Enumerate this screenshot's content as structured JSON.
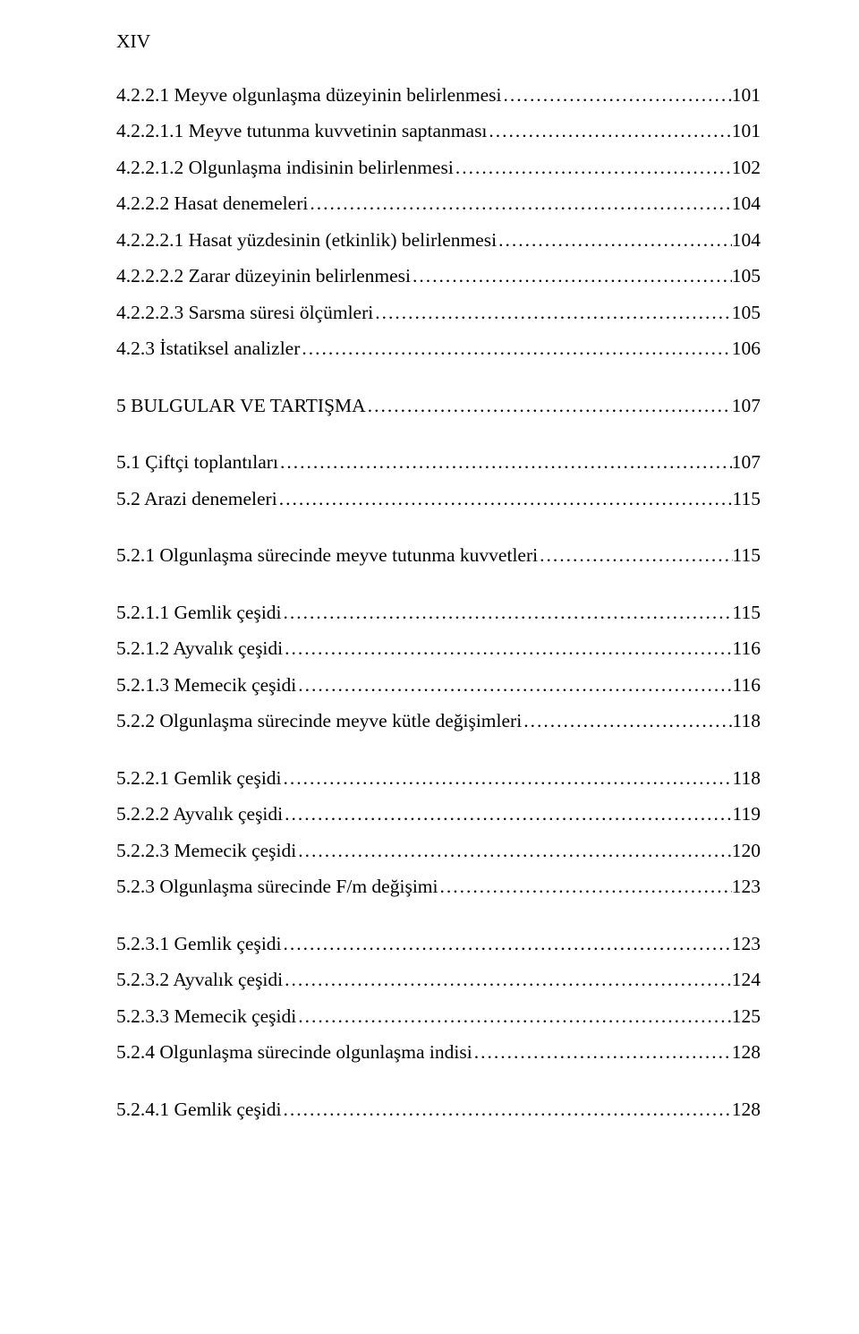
{
  "page_number": "XIV",
  "font": {
    "family": "Times New Roman",
    "size_pt": 16,
    "color": "#000000"
  },
  "background_color": "#ffffff",
  "toc": [
    {
      "label": "4.2.2.1 Meyve olgunlaşma düzeyinin belirlenmesi",
      "page": "101",
      "gap": "s"
    },
    {
      "label": "4.2.2.1.1 Meyve tutunma kuvvetinin saptanması",
      "page": "101",
      "gap": "s"
    },
    {
      "label": "4.2.2.1.2 Olgunlaşma indisinin belirlenmesi",
      "page": "102",
      "gap": "s"
    },
    {
      "label": "4.2.2.2 Hasat denemeleri",
      "page": "104",
      "gap": "s"
    },
    {
      "label": "4.2.2.2.1 Hasat yüzdesinin (etkinlik) belirlenmesi",
      "page": "104",
      "gap": "s"
    },
    {
      "label": "4.2.2.2.2 Zarar düzeyinin belirlenmesi",
      "page": "105",
      "gap": "s"
    },
    {
      "label": "4.2.2.2.3 Sarsma süresi ölçümleri",
      "page": "105",
      "gap": "s"
    },
    {
      "label": "4.2.3 İstatiksel analizler",
      "page": "106",
      "gap": "m"
    },
    {
      "label": "5  BULGULAR VE TARTIŞMA",
      "page": "107",
      "gap": "l"
    },
    {
      "label": "5.1 Çiftçi toplantıları",
      "page": "107",
      "gap": "s"
    },
    {
      "label": "5.2 Arazi denemeleri",
      "page": "115",
      "gap": "l"
    },
    {
      "label": "5.2.1 Olgunlaşma sürecinde meyve tutunma kuvvetleri",
      "page": "115",
      "gap": "l"
    },
    {
      "label": "5.2.1.1 Gemlik çeşidi",
      "page": "115",
      "gap": "s"
    },
    {
      "label": "5.2.1.2 Ayvalık çeşidi",
      "page": "116",
      "gap": "s"
    },
    {
      "label": "5.2.1.3 Memecik çeşidi",
      "page": "116",
      "gap": "s"
    },
    {
      "label": "5.2.2 Olgunlaşma sürecinde meyve kütle değişimleri",
      "page": "118",
      "gap": "l"
    },
    {
      "label": "5.2.2.1 Gemlik çeşidi",
      "page": "118",
      "gap": "s"
    },
    {
      "label": "5.2.2.2 Ayvalık çeşidi",
      "page": "119",
      "gap": "s"
    },
    {
      "label": "5.2.2.3 Memecik çeşidi",
      "page": "120",
      "gap": "s"
    },
    {
      "label": "5.2.3 Olgunlaşma sürecinde F/m değişimi",
      "page": "123",
      "gap": "l"
    },
    {
      "label": "5.2.3.1 Gemlik çeşidi",
      "page": "123",
      "gap": "s"
    },
    {
      "label": "5.2.3.2 Ayvalık çeşidi",
      "page": "124",
      "gap": "s"
    },
    {
      "label": "5.2.3.3 Memecik çeşidi",
      "page": "125",
      "gap": "s"
    },
    {
      "label": "5.2.4 Olgunlaşma sürecinde olgunlaşma indisi",
      "page": "128",
      "gap": "l"
    },
    {
      "label": "5.2.4.1 Gemlik çeşidi",
      "page": "128",
      "gap": "s"
    }
  ]
}
